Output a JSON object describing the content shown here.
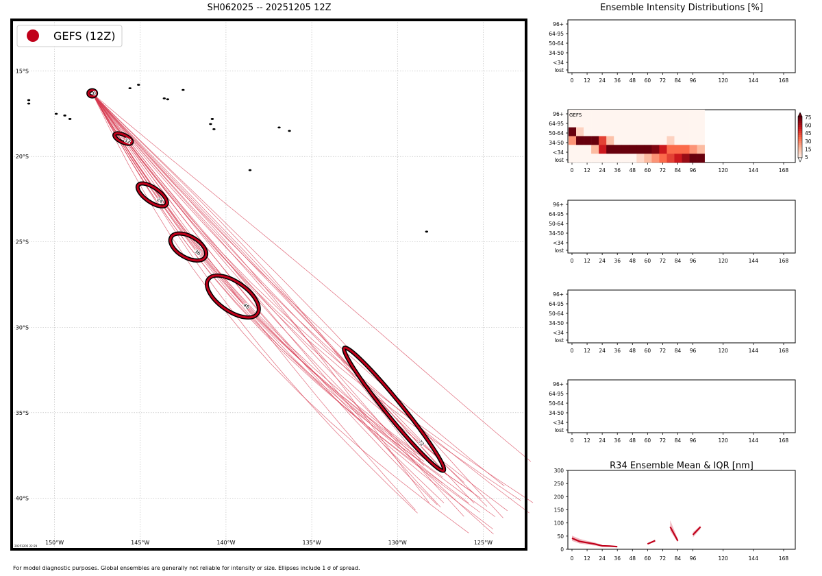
{
  "map_title": "SH062025 -- 20251205 12Z",
  "footer_note": "For model diagnostic purposes. Global ensembles are generally not reliable for intensity or size. Ellipses include 1 σ of spread.",
  "stamp": "20251205 22:29",
  "legend": {
    "label": "GEFS (12Z)",
    "color": "#c0001a"
  },
  "colors": {
    "track": "#d6384f",
    "ellipse_outer": "#000000",
    "ellipse_inner": "#c0001a",
    "frame": "#000000",
    "grid": "#b5b5b5"
  },
  "intensity_title": "Ensemble Intensity Distributions [%]",
  "r34_title": "R34 Ensemble Mean & IQR [nm]",
  "panel_x_ticks": [
    "0",
    "12",
    "24",
    "36",
    "48",
    "60",
    "72",
    "84",
    "96",
    "120",
    "144",
    "168"
  ],
  "intensity_categories": [
    "96+",
    "64-95",
    "50-64",
    "34-50",
    "<34",
    "lost"
  ],
  "heatmap_label": "GEFS",
  "colorbar_ticks": [
    "75",
    "60",
    "45",
    "30",
    "15",
    "5"
  ],
  "r34_y_ticks": [
    "0",
    "50",
    "100",
    "150",
    "200",
    "250",
    "300"
  ],
  "chart_data": [
    {
      "type": "map-track",
      "title": "SH062025 -- 20251205 12Z",
      "lon_range": [
        -152.5,
        -122.5
      ],
      "lat_range": [
        -43.0,
        -12.0
      ],
      "lon_ticks": [
        {
          "lon": -150,
          "label": "150°W"
        },
        {
          "lon": -145,
          "label": "145°W"
        },
        {
          "lon": -140,
          "label": "140°W"
        },
        {
          "lon": -135,
          "label": "135°W"
        },
        {
          "lon": -130,
          "label": "130°W"
        },
        {
          "lon": -125,
          "label": "125°W"
        }
      ],
      "lat_ticks": [
        {
          "lat": -15,
          "label": "15°S"
        },
        {
          "lat": -20,
          "label": "20°S"
        },
        {
          "lat": -25,
          "label": "25°S"
        },
        {
          "lat": -30,
          "label": "30°S"
        },
        {
          "lat": -35,
          "label": "35°S"
        },
        {
          "lat": -40,
          "label": "40°S"
        }
      ],
      "grid": true,
      "legend_position": "top-left",
      "ellipses": [
        {
          "hour": "0",
          "lon": -147.8,
          "lat": -16.3,
          "a": 0.22,
          "b": 0.18,
          "angle": 0
        },
        {
          "hour": "12",
          "lon": -146.0,
          "lat": -18.95,
          "a": 0.55,
          "b": 0.22,
          "angle": 25
        },
        {
          "hour": "24",
          "lon": -144.3,
          "lat": -22.25,
          "a": 1.0,
          "b": 0.42,
          "angle": 35
        },
        {
          "hour": "36",
          "lon": -142.2,
          "lat": -25.3,
          "a": 1.15,
          "b": 0.62,
          "angle": 30
        },
        {
          "hour": "48",
          "lon": -139.6,
          "lat": -28.2,
          "a": 1.75,
          "b": 0.85,
          "angle": 35
        },
        {
          "hour": "72",
          "lon": -130.2,
          "lat": -34.8,
          "a": 4.6,
          "b": 0.48,
          "angle": 51
        }
      ],
      "islands": [
        {
          "lon": -151.5,
          "lat": -16.7
        },
        {
          "lon": -151.5,
          "lat": -16.9
        },
        {
          "lon": -149.9,
          "lat": -17.5
        },
        {
          "lon": -149.4,
          "lat": -17.6
        },
        {
          "lon": -149.1,
          "lat": -17.8
        },
        {
          "lon": -145.6,
          "lat": -16.0
        },
        {
          "lon": -145.1,
          "lat": -15.8
        },
        {
          "lon": -143.6,
          "lat": -16.6
        },
        {
          "lon": -143.4,
          "lat": -16.65
        },
        {
          "lon": -142.5,
          "lat": -16.1
        },
        {
          "lon": -140.8,
          "lat": -17.8
        },
        {
          "lon": -140.9,
          "lat": -18.1
        },
        {
          "lon": -140.7,
          "lat": -18.4
        },
        {
          "lon": -138.6,
          "lat": -20.8
        },
        {
          "lon": -136.9,
          "lat": -18.3
        },
        {
          "lon": -136.3,
          "lat": -18.5
        },
        {
          "lon": -128.3,
          "lat": -24.4
        }
      ]
    },
    {
      "type": "heatmap",
      "title": "Ensemble Intensity Distributions [%]",
      "series": "GEFS",
      "x_hours": [
        0,
        6,
        12,
        18,
        24,
        30,
        36,
        42,
        48,
        54,
        60,
        66,
        72,
        78,
        84,
        90,
        96,
        102
      ],
      "rows": [
        "96+",
        "64-95",
        "50-64",
        "34-50",
        "<34",
        "lost"
      ],
      "values": [
        [
          0,
          0,
          0,
          0,
          0,
          0,
          0,
          0,
          0,
          0,
          0,
          0,
          0,
          0,
          0,
          0,
          0,
          0
        ],
        [
          0,
          0,
          0,
          0,
          0,
          0,
          0,
          0,
          0,
          0,
          0,
          0,
          0,
          0,
          0,
          0,
          0,
          0
        ],
        [
          92,
          12,
          0,
          0,
          0,
          0,
          0,
          0,
          0,
          0,
          0,
          0,
          0,
          0,
          0,
          0,
          0,
          0
        ],
        [
          30,
          92,
          92,
          92,
          50,
          18,
          0,
          0,
          0,
          0,
          0,
          0,
          0,
          12,
          0,
          0,
          0,
          0
        ],
        [
          0,
          0,
          0,
          20,
          60,
          92,
          92,
          92,
          92,
          92,
          92,
          75,
          60,
          40,
          40,
          40,
          30,
          20
        ],
        [
          0,
          0,
          0,
          0,
          0,
          0,
          0,
          0,
          0,
          10,
          20,
          30,
          40,
          50,
          60,
          70,
          80,
          92
        ]
      ],
      "color_range": [
        0,
        80
      ]
    },
    {
      "type": "line",
      "title": "R34 Ensemble Mean & IQR [nm]",
      "ylim": [
        0,
        300
      ],
      "segments": [
        {
          "x": [
            0,
            6,
            12,
            18,
            24,
            30,
            36
          ],
          "mean": [
            42,
            30,
            25,
            20,
            13,
            12,
            10
          ],
          "iqr_low": [
            32,
            22,
            18,
            14,
            10,
            9,
            8
          ],
          "iqr_high": [
            52,
            40,
            32,
            26,
            16,
            14,
            12
          ]
        },
        {
          "x": [
            60,
            66
          ],
          "mean": [
            20,
            33
          ],
          "iqr_low": [
            18,
            28
          ],
          "iqr_high": [
            22,
            36
          ]
        },
        {
          "x": [
            78,
            84
          ],
          "mean": [
            85,
            32
          ],
          "iqr_low": [
            70,
            26
          ],
          "iqr_high": [
            110,
            40
          ]
        },
        {
          "x": [
            96,
            102
          ],
          "mean": [
            55,
            85
          ],
          "iqr_low": [
            45,
            78
          ],
          "iqr_high": [
            65,
            90
          ]
        }
      ]
    }
  ]
}
